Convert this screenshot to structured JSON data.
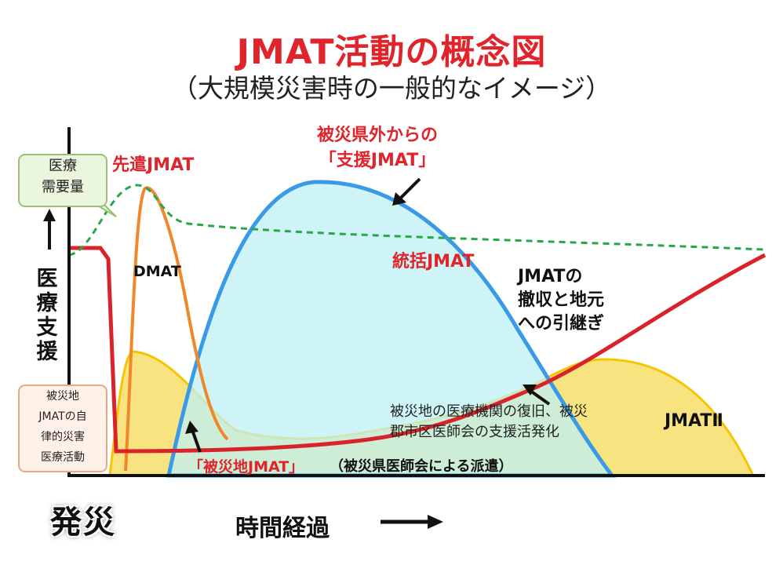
{
  "title": "JMAT活動の概念図",
  "subtitle": "（大規模災害時の一般的なイメージ）",
  "labels": {
    "medical_demand": "医療\n需要量",
    "medical_support": "医\n療\n支\n援",
    "local_jmat_box": "被災地\nJMATの自\n律的災害\n医療活動",
    "advance_jmat": "先遣JMAT",
    "dmat": "DMAT",
    "support_jmat": "被災県外からの\n「支援JMAT」",
    "general_jmat": "統括JMAT",
    "withdrawal": "JMATの\n撤収と地元\nへの引継ぎ",
    "recovery": "被災地の医療機関の復旧、被災\n郡市区医師会の支援活発化",
    "jmat2": "JMATⅡ",
    "disaster_jmat": "「被災地JMAT」",
    "dispatch": "（被災県医師会による派遣）",
    "hassai": "発災",
    "time_axis": "時間経過"
  },
  "colors": {
    "title_red": "#e0242b",
    "green_demand": "#27a845",
    "blue_support": "#3b9ae8",
    "blue_fill": "#bff0f4",
    "orange_dmat": "#f2872a",
    "yellow_fill": "#f6df6a",
    "yellow_stroke": "#f5c500",
    "red_line": "#d9232a"
  }
}
